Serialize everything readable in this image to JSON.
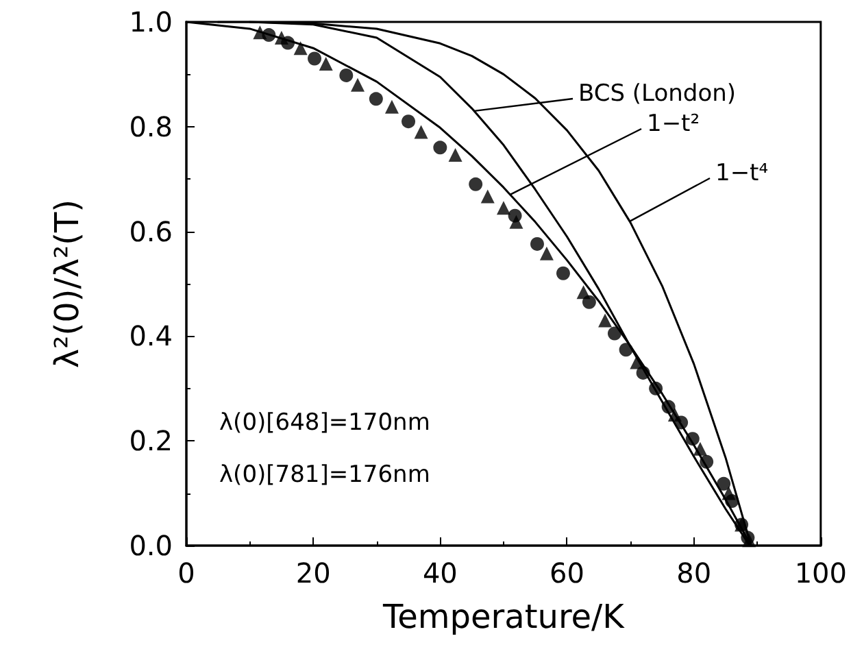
{
  "chart_data": {
    "type": "scatter",
    "xlabel": "Temperature/K",
    "ylabel": "λ²(0)/λ²(T)",
    "xlim": [
      0,
      100
    ],
    "xticks": [
      0,
      20,
      40,
      60,
      80,
      100
    ],
    "ylim": [
      0,
      1
    ],
    "yticks": [
      {
        "value": 0,
        "label": "0.0"
      },
      {
        "value": 0.2,
        "label": "0.2"
      },
      {
        "value": 0.4,
        "label": "0.4"
      },
      {
        "value": 0.6,
        "label": "0.6"
      },
      {
        "value": 0.8,
        "label": "0.8"
      },
      {
        "value": 1,
        "label": "1.0"
      }
    ],
    "grid": false,
    "annotations": [
      {
        "text": "BCS (London)",
        "x": 45.4,
        "y": 0.83
      },
      {
        "text": "1−t²",
        "x": 51,
        "y": 0.67
      },
      {
        "text": "1−t⁴",
        "x": 70,
        "y": 0.62
      },
      "λ(0)[648]=170nm",
      "λ(0)[781]=176nm"
    ],
    "series": [
      {
        "type": "line",
        "color": "#000000",
        "marker": "none",
        "x": [
          0,
          10,
          20,
          30,
          40,
          45,
          50,
          55,
          60,
          65,
          70,
          75,
          80,
          85,
          89
        ],
        "values": [
          1,
          0.987,
          0.95,
          0.886,
          0.798,
          0.744,
          0.684,
          0.618,
          0.545,
          0.467,
          0.381,
          0.29,
          0.192,
          0.088,
          0
        ]
      },
      {
        "type": "line",
        "color": "#000000",
        "marker": "none",
        "x": [
          5,
          10,
          20,
          30,
          40,
          45,
          50,
          55,
          60,
          65,
          70,
          75,
          80,
          85,
          88.8
        ],
        "values": [
          1,
          1,
          0.995,
          0.97,
          0.895,
          0.835,
          0.765,
          0.68,
          0.59,
          0.49,
          0.38,
          0.275,
          0.17,
          0.07,
          0
        ]
      },
      {
        "type": "line",
        "color": "#000000",
        "marker": "none",
        "x": [
          10,
          20,
          30,
          40,
          45,
          50,
          55,
          60,
          65,
          70,
          75,
          80,
          85,
          89
        ],
        "values": [
          1,
          0.997,
          0.987,
          0.959,
          0.935,
          0.9,
          0.854,
          0.793,
          0.716,
          0.617,
          0.496,
          0.347,
          0.168,
          0
        ]
      },
      {
        "color": "#000000",
        "marker": "circle",
        "x": [
          13,
          16,
          20.2,
          25.2,
          29.9,
          35,
          40,
          45.6,
          51.8,
          55.3,
          59.4,
          63.5,
          67.5,
          69.3,
          72,
          74,
          76,
          78,
          79.8,
          82,
          84.7,
          86,
          87.5,
          88.5
        ],
        "values": [
          0.975,
          0.96,
          0.93,
          0.898,
          0.853,
          0.81,
          0.76,
          0.69,
          0.63,
          0.576,
          0.52,
          0.465,
          0.405,
          0.374,
          0.33,
          0.3,
          0.265,
          0.235,
          0.204,
          0.16,
          0.118,
          0.085,
          0.04,
          0.015
        ]
      },
      {
        "color": "#000000",
        "marker": "triangle",
        "x": [
          11.6,
          15,
          18,
          22,
          27,
          32.4,
          37,
          42.4,
          47.5,
          50,
          52,
          56.8,
          62.6,
          66,
          71,
          77,
          81,
          85.5,
          87.5,
          88.7
        ],
        "values": [
          0.98,
          0.97,
          0.95,
          0.92,
          0.88,
          0.838,
          0.79,
          0.746,
          0.667,
          0.645,
          0.618,
          0.558,
          0.484,
          0.43,
          0.35,
          0.25,
          0.185,
          0.1,
          0.04,
          0.01
        ]
      }
    ]
  }
}
